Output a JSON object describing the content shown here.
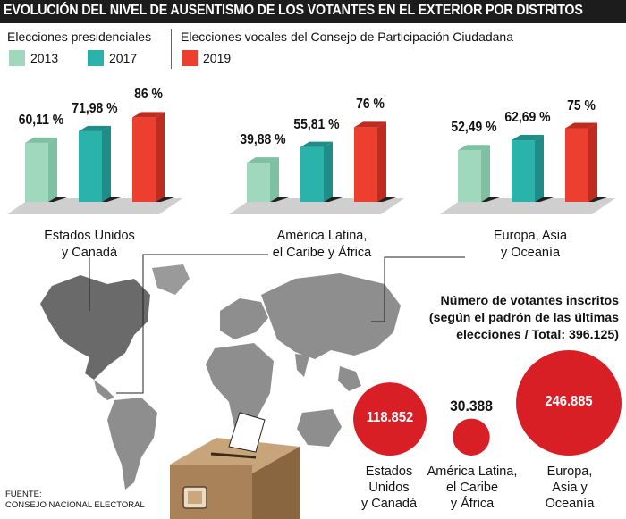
{
  "header": {
    "title": "EVOLUCIÓN DEL NIVEL DE AUSENTISMO DE LOS VOTANTES EN EL EXTERIOR POR DISTRITOS"
  },
  "legend": {
    "presidential_heading": "Elecciones presidenciales",
    "vocales_heading": "Elecciones vocales del Consejo de Participación Ciudadana",
    "items": [
      {
        "label": "2013",
        "color": "#9fd8bd"
      },
      {
        "label": "2017",
        "color": "#29b3ab"
      },
      {
        "label": "2019",
        "color": "#ed3f2f"
      }
    ]
  },
  "chart_data": [
    {
      "type": "bar",
      "title": "EVOLUCIÓN DEL NIVEL DE AUSENTISMO DE LOS VOTANTES EN EL EXTERIOR POR DISTRITOS",
      "categories": [
        "Estados Unidos y Canadá",
        "América Latina, el Caribe y África",
        "Europa, Asia y Oceanía"
      ],
      "series": [
        {
          "name": "2013",
          "values": [
            60.11,
            39.88,
            52.49
          ],
          "labels": [
            "60,11 %",
            "39,88 %",
            "52,49 %"
          ]
        },
        {
          "name": "2017",
          "values": [
            71.98,
            55.81,
            62.69
          ],
          "labels": [
            "71,98 %",
            "55,81 %",
            "62,69 %"
          ]
        },
        {
          "name": "2019",
          "values": [
            86,
            76,
            75
          ],
          "labels": [
            "86 %",
            "76 %",
            "75 %"
          ]
        }
      ],
      "ylim": [
        0,
        100
      ],
      "colors": [
        "#9fd8bd",
        "#29b3ab",
        "#ed3f2f"
      ]
    },
    {
      "type": "bubble",
      "title": "Número de votantes inscritos (según el padrón de las últimas elecciones / Total: 396.125)",
      "categories": [
        "Estados Unidos y Canadá",
        "América Latina, el Caribe y África",
        "Europa, Asia y Oceanía"
      ],
      "values": [
        118852,
        30388,
        246885
      ],
      "labels": [
        "118.852",
        "30.388",
        "246.885"
      ],
      "color": "#d81f26"
    }
  ],
  "regions": [
    {
      "lines": [
        "Estados Unidos",
        "y Canadá"
      ]
    },
    {
      "lines": [
        "América Latina,",
        "el Caribe y África"
      ]
    },
    {
      "lines": [
        "Europa, Asia",
        "y Oceanía"
      ]
    }
  ],
  "voters": {
    "heading_lines": [
      "Número de votantes inscritos",
      "(según el padrón de las últimas",
      "elecciones / Total: 396.125)"
    ],
    "bubbles": [
      {
        "lines": [
          "Estados",
          "Unidos",
          "y Canadá"
        ]
      },
      {
        "lines": [
          "América Latina,",
          "el Caribe",
          "y África"
        ]
      },
      {
        "lines": [
          "Europa,",
          "Asia y",
          "Oceanía"
        ]
      }
    ]
  },
  "source": {
    "line1": "FUENTE:",
    "line2": "CONSEJO NACIONAL ELECTORAL"
  },
  "colors": {
    "title_bg": "#1c1c1c",
    "map": "#8e8e8e",
    "map_highlight": "#6a6a6a",
    "shadow": "#cfcfcf",
    "bubble": "#d81f26",
    "box": "#b8926a"
  }
}
